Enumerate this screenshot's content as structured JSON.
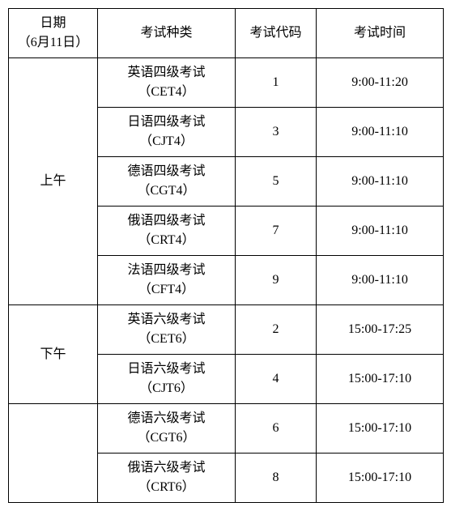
{
  "headers": {
    "date_line1": "日期",
    "date_line2": "（6月11日）",
    "type": "考试种类",
    "code": "考试代码",
    "time": "考试时间"
  },
  "sessions": [
    {
      "label": "上午",
      "rows": [
        {
          "type_line1": "英语四级考试",
          "type_line2": "（CET4）",
          "code": "1",
          "time": "9:00-11:20"
        },
        {
          "type_line1": "日语四级考试",
          "type_line2": "（CJT4）",
          "code": "3",
          "time": "9:00-11:10"
        },
        {
          "type_line1": "德语四级考试",
          "type_line2": "（CGT4）",
          "code": "5",
          "time": "9:00-11:10"
        },
        {
          "type_line1": "俄语四级考试",
          "type_line2": "（CRT4）",
          "code": "7",
          "time": "9:00-11:10"
        },
        {
          "type_line1": "法语四级考试",
          "type_line2": "（CFT4）",
          "code": "9",
          "time": "9:00-11:10"
        }
      ]
    },
    {
      "label": "下午",
      "rows": [
        {
          "type_line1": "英语六级考试",
          "type_line2": "（CET6）",
          "code": "2",
          "time": "15:00-17:25"
        },
        {
          "type_line1": "日语六级考试",
          "type_line2": "（CJT6）",
          "code": "4",
          "time": "15:00-17:10"
        }
      ]
    },
    {
      "label": "",
      "rows": [
        {
          "type_line1": "德语六级考试",
          "type_line2": "（CGT6）",
          "code": "6",
          "time": "15:00-17:10"
        },
        {
          "type_line1": "俄语六级考试",
          "type_line2": "（CRT6）",
          "code": "8",
          "time": "15:00-17:10"
        }
      ]
    }
  ]
}
